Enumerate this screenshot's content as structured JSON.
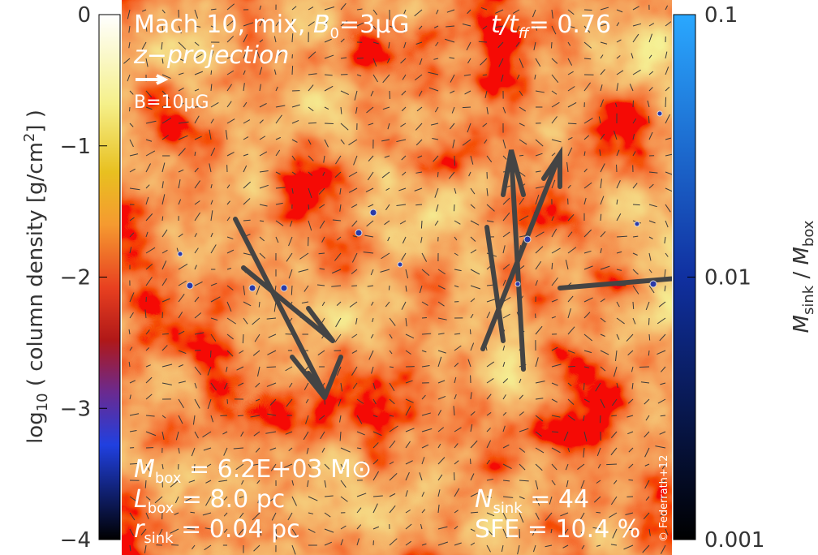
{
  "header": {
    "title": "Mach 10, mix, ",
    "b0": {
      "symbol": "B",
      "sub": "0",
      "text": "=3μG"
    },
    "time": {
      "symbol": "t/t",
      "sub": "ff",
      "text": "=  0.76"
    },
    "projection": "z−projection",
    "field_scale": "B=10μG"
  },
  "stats": {
    "mbox": {
      "symbol": "M",
      "sub": "box",
      "text": " = 6.2E+03 M⊙"
    },
    "lbox": {
      "symbol": "L",
      "sub": "box",
      "text": " =    8.0 pc"
    },
    "rsink": {
      "symbol": "r",
      "sub": "sink",
      "text": " = 0.04 pc"
    },
    "nsink": {
      "symbol": "N",
      "sub": "sink",
      "text": " =     44"
    },
    "sfe": "SFE = 10.4 %",
    "credit": "© Federrath+12"
  },
  "left_colorbar": {
    "label": {
      "pre": "log",
      "sub": "10",
      "mid": " ( column density [g/cm",
      "sup": "2",
      "post": "] )"
    },
    "lim": [
      0,
      -4
    ],
    "ticks": [
      0,
      {
        "value": -1,
        "label": "−1"
      },
      {
        "value": -2,
        "label": "−2"
      },
      {
        "value": -3,
        "label": "−3"
      },
      {
        "value": -4,
        "label": "−4"
      }
    ]
  },
  "right_colorbar": {
    "label": {
      "s1": "M",
      "b1": "sink",
      "mid": " / ",
      "s2": "M",
      "b2": "box"
    },
    "scale": "log",
    "lim": [
      0.1,
      0.001
    ],
    "ticks": [
      0.1,
      0.01,
      0.001
    ]
  }
}
